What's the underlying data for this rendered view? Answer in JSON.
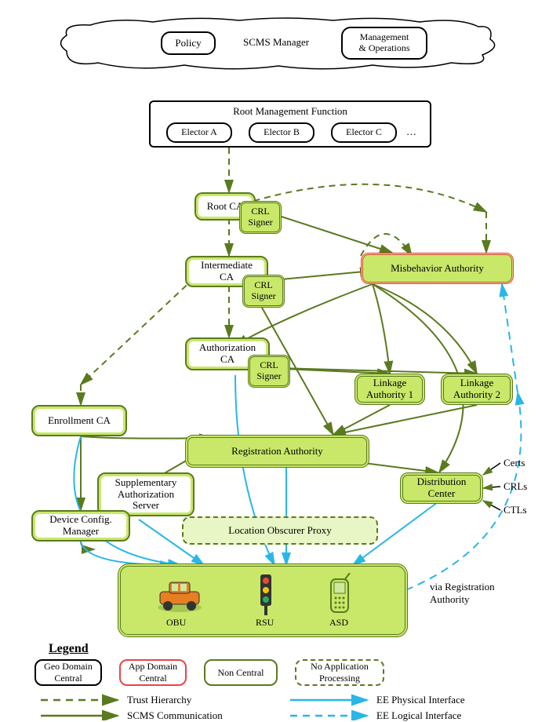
{
  "colors": {
    "green_border": "#5a7a1f",
    "green_fill": "#c9e86a",
    "green_light": "#e8f5c4",
    "red": "#e84545",
    "black": "#000000",
    "blue": "#29b6e8",
    "white": "#ffffff"
  },
  "cloud": {
    "policy": "Policy",
    "manager": "SCMS Manager",
    "mgmt_ops": "Management\n& Operations"
  },
  "rmf": {
    "title": "Root Management Function",
    "electors": [
      "Elector A",
      "Elector B",
      "Elector C"
    ],
    "ellipsis": "…"
  },
  "nodes": {
    "root_ca": "Root CA",
    "crl_signer": "CRL\nSigner",
    "intermediate_ca": "Intermediate\nCA",
    "misbehavior": "Misbehavior Authority",
    "authorization_ca": "Authorization\nCA",
    "linkage1": "Linkage\nAuthority 1",
    "linkage2": "Linkage\nAuthority 2",
    "enrollment_ca": "Enrollment CA",
    "registration": "Registration Authority",
    "supplementary": "Supplementary\nAuthorization\nServer",
    "device_config": "Device Config.\nManager",
    "distribution": "Distribution\nCenter",
    "location_obscurer": "Location Obscurer Proxy"
  },
  "side_labels": {
    "certs": "Certs",
    "crls": "CRLs",
    "ctls": "CTLs",
    "via_reg": "via Registration\nAuthority"
  },
  "devices": {
    "obu": "OBU",
    "rsu": "RSU",
    "asd": "ASD"
  },
  "legend": {
    "title": "Legend",
    "geo": "Geo Domain\nCentral",
    "app": "App Domain\nCentral",
    "nc": "Non Central",
    "nap": "No Application\nProcessing",
    "trust": "Trust Hierarchy",
    "scms": "SCMS Communication",
    "phys": "EE Physical Interface",
    "logi": "EE Logical Interface"
  },
  "edges": {
    "trust": [
      {
        "from": [
          292,
          188
        ],
        "to": [
          292,
          245
        ]
      },
      {
        "from": [
          292,
          278
        ],
        "to": [
          292,
          326
        ]
      },
      {
        "from": [
          292,
          364
        ],
        "to": [
          292,
          430
        ]
      },
      {
        "from": [
          248,
          354
        ],
        "to": [
          103,
          490
        ]
      },
      {
        "from": [
          103,
          490
        ],
        "to": [
          103,
          516
        ]
      },
      {
        "from": [
          460,
          326
        ],
        "to": [
          525,
          326
        ],
        "curve": [
          490,
          270
        ]
      },
      {
        "from": [
          310,
          260
        ],
        "to": [
          620,
          270
        ],
        "curve": [
          490,
          205
        ]
      },
      {
        "from": [
          620,
          270
        ],
        "to": [
          620,
          322
        ]
      }
    ],
    "scms": [
      {
        "from": [
          316,
          262
        ],
        "to": [
          500,
          322
        ]
      },
      {
        "from": [
          316,
          360
        ],
        "to": [
          475,
          345
        ]
      },
      {
        "from": [
          316,
          360
        ],
        "to": [
          425,
          554
        ]
      },
      {
        "from": [
          316,
          468
        ],
        "to": [
          497,
          476
        ]
      },
      {
        "from": [
          316,
          468
        ],
        "to": [
          608,
          476
        ]
      },
      {
        "from": [
          497,
          516
        ],
        "to": [
          425,
          554
        ]
      },
      {
        "from": [
          608,
          516
        ],
        "to": [
          425,
          554
        ]
      },
      {
        "from": [
          425,
          585
        ],
        "to": [
          558,
          602
        ]
      },
      {
        "from": [
          177,
          622
        ],
        "to": [
          270,
          568
        ]
      },
      {
        "from": [
          103,
          556
        ],
        "to": [
          103,
          650
        ]
      },
      {
        "from": [
          103,
          690
        ],
        "to": [
          120,
          700
        ],
        "curve": [
          103,
          700
        ]
      },
      {
        "from": [
          103,
          556
        ],
        "to": [
          270,
          558
        ],
        "curve": [
          160,
          560
        ]
      },
      {
        "from": [
          475,
          362
        ],
        "to": [
          300,
          440
        ],
        "curve": [
          360,
          405
        ]
      },
      {
        "from": [
          475,
          362
        ],
        "to": [
          497,
          476
        ],
        "curve": [
          490,
          410
        ]
      },
      {
        "from": [
          475,
          362
        ],
        "to": [
          608,
          476
        ],
        "curve": [
          570,
          400
        ]
      },
      {
        "from": [
          475,
          362
        ],
        "to": [
          560,
          602
        ],
        "curve": [
          650,
          470
        ]
      }
    ],
    "phys": [
      {
        "from": [
          103,
          556
        ],
        "to": [
          230,
          720
        ],
        "curve": [
          60,
          700
        ]
      },
      {
        "from": [
          177,
          662
        ],
        "to": [
          260,
          720
        ]
      },
      {
        "from": [
          103,
          690
        ],
        "to": [
          220,
          720
        ],
        "curve": [
          110,
          720
        ]
      },
      {
        "from": [
          300,
          478
        ],
        "to": [
          350,
          720
        ],
        "curve": [
          300,
          620
        ]
      },
      {
        "from": [
          558,
          640
        ],
        "to": [
          450,
          720
        ]
      },
      {
        "from": [
          365,
          596
        ],
        "to": [
          365,
          720
        ]
      }
    ],
    "logi": [
      {
        "from": [
          517,
          752
        ],
        "to": [
          660,
          500
        ],
        "curve": [
          690,
          680
        ]
      },
      {
        "from": [
          660,
          500
        ],
        "to": [
          640,
          362
        ]
      }
    ]
  },
  "styles": {
    "trust": {
      "stroke": "#5a7a1f",
      "width": 2,
      "dash": "8,6",
      "arrow": true
    },
    "scms": {
      "stroke": "#5a7a1f",
      "width": 2,
      "dash": "",
      "arrow": true
    },
    "phys": {
      "stroke": "#29b6e8",
      "width": 2,
      "dash": "",
      "arrow": true
    },
    "logi": {
      "stroke": "#29b6e8",
      "width": 2,
      "dash": "10,7",
      "arrow": true
    }
  }
}
